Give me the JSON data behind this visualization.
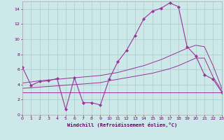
{
  "xlabel": "Windchill (Refroidissement éolien,°C)",
  "bg_color": "#cce8e8",
  "grid_color": "#aacccc",
  "line_color": "#993399",
  "x": [
    0,
    1,
    2,
    3,
    4,
    5,
    6,
    7,
    8,
    9,
    10,
    11,
    12,
    13,
    14,
    15,
    16,
    17,
    18,
    19,
    20,
    21,
    22,
    23
  ],
  "y_main": [
    6.3,
    3.9,
    4.4,
    4.5,
    4.8,
    0.7,
    4.9,
    1.6,
    1.6,
    1.3,
    4.7,
    7.0,
    8.5,
    10.5,
    12.7,
    13.7,
    14.1,
    14.8,
    14.3,
    9.0,
    7.8,
    5.3,
    4.7,
    3.0
  ],
  "y_line1": [
    3.0,
    3.0,
    3.0,
    3.0,
    3.0,
    3.0,
    3.0,
    3.0,
    3.0,
    3.0,
    3.0,
    3.0,
    3.0,
    3.0,
    3.0,
    3.0,
    3.0,
    3.0,
    3.0,
    3.0,
    3.0,
    3.0,
    3.0,
    3.0
  ],
  "y_line2": [
    3.5,
    3.58,
    3.67,
    3.75,
    3.83,
    3.92,
    4.0,
    4.08,
    4.17,
    4.25,
    4.5,
    4.7,
    4.9,
    5.1,
    5.3,
    5.5,
    5.8,
    6.1,
    6.5,
    7.0,
    7.5,
    7.5,
    5.0,
    3.2
  ],
  "y_line3": [
    4.2,
    4.35,
    4.5,
    4.6,
    4.7,
    4.8,
    4.9,
    5.0,
    5.1,
    5.2,
    5.4,
    5.6,
    5.9,
    6.2,
    6.5,
    6.9,
    7.3,
    7.8,
    8.3,
    8.8,
    9.2,
    9.0,
    6.5,
    3.5
  ],
  "ylim": [
    0,
    15
  ],
  "xlim": [
    0,
    23
  ],
  "yticks": [
    0,
    2,
    4,
    6,
    8,
    10,
    12,
    14
  ]
}
